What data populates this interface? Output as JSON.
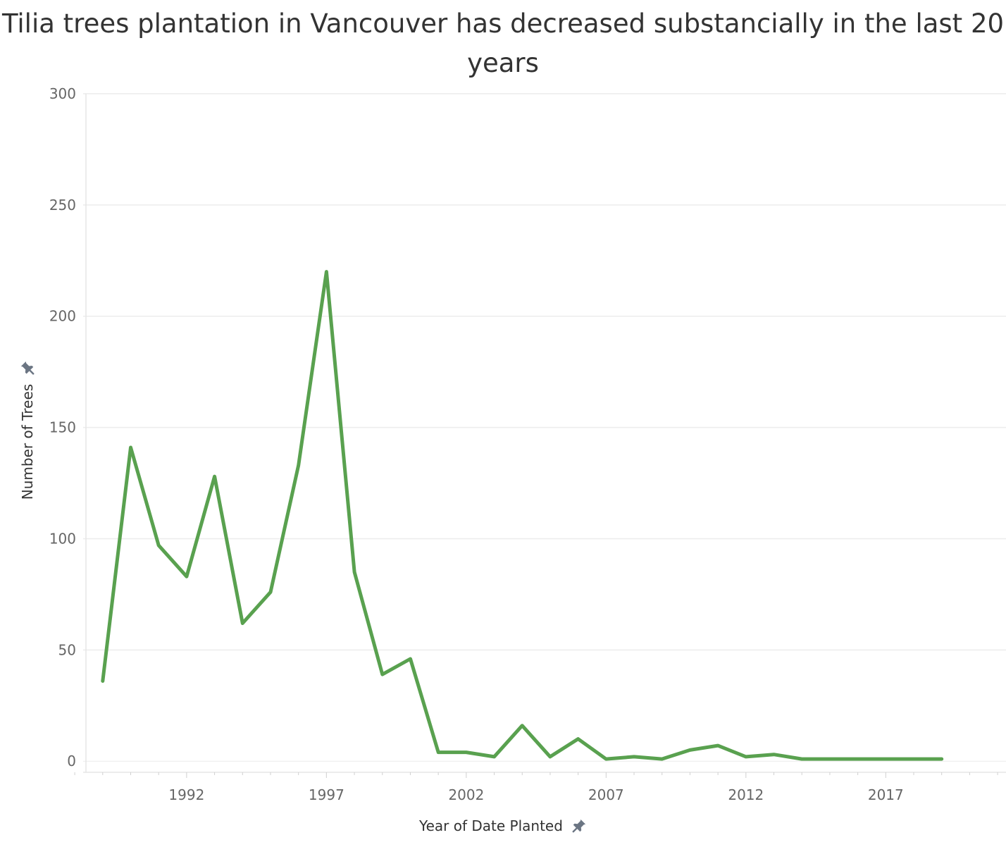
{
  "chart_data": {
    "type": "line",
    "title": "Tilia trees plantation in Vancouver has decreased substancially in the last 20 years",
    "xlabel": "Year of Date Planted",
    "ylabel": "Number of Trees",
    "x_tick_labels": [
      "1992",
      "1997",
      "2002",
      "2007",
      "2012",
      "2017"
    ],
    "y_tick_labels": [
      "0",
      "50",
      "100",
      "150",
      "200",
      "250",
      "300"
    ],
    "x_ticks": [
      1992,
      1997,
      2002,
      2007,
      2012,
      2017
    ],
    "y_ticks": [
      0,
      50,
      100,
      150,
      200,
      250,
      300
    ],
    "xlim": [
      1988.3,
      2021.3
    ],
    "ylim": [
      -5,
      300
    ],
    "grid": true,
    "series": [
      {
        "color": "#59a14f",
        "x": [
          1989,
          1990,
          1991,
          1992,
          1993,
          1994,
          1995,
          1996,
          1997,
          1998,
          1999,
          2000,
          2001,
          2002,
          2003,
          2004,
          2005,
          2006,
          2007,
          2008,
          2009,
          2010,
          2011,
          2012,
          2013,
          2014,
          2015,
          2016,
          2017,
          2018,
          2019
        ],
        "values": [
          36,
          141,
          97,
          83,
          128,
          62,
          76,
          133,
          220,
          85,
          39,
          46,
          4,
          4,
          2,
          16,
          2,
          10,
          1,
          2,
          1,
          5,
          7,
          2,
          3,
          1,
          1,
          1,
          1,
          1,
          1
        ]
      }
    ]
  },
  "icons": {
    "y_axis_pin": "pin-icon",
    "x_axis_pin": "pin-icon"
  },
  "colors": {
    "line": "#59a14f",
    "grid": "#ececec",
    "axis": "#e6e6e6",
    "pin": "#6b7583"
  }
}
